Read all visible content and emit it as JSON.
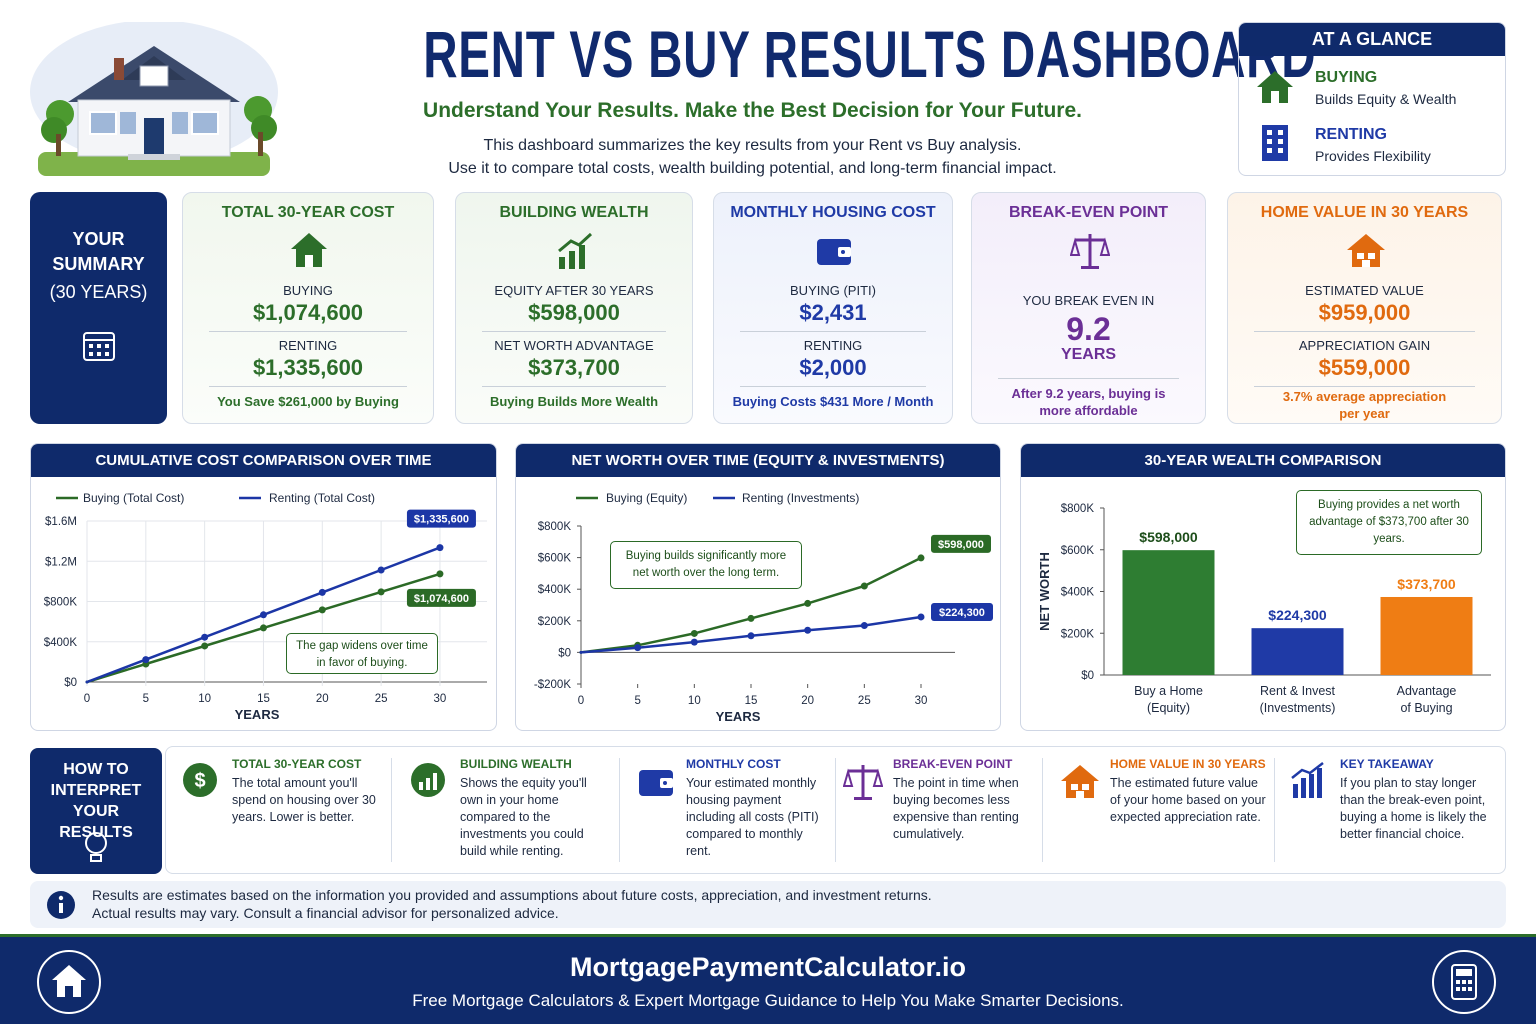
{
  "header": {
    "title": "RENT VS BUY RESULTS DASHBOARD",
    "subtitle": "Understand Your Results. Make the Best Decision for Your Future.",
    "description": [
      "This dashboard summarizes the key results from your Rent vs Buy analysis.",
      "Use it to compare total costs, wealth building potential, and long-term financial impact."
    ]
  },
  "glance": {
    "title": "AT A GLANCE",
    "items": [
      {
        "label": "BUYING",
        "text": "Builds Equity & Wealth"
      },
      {
        "label": "RENTING",
        "text": "Provides Flexibility"
      }
    ]
  },
  "summary": {
    "label": [
      "YOUR",
      "SUMMARY",
      "(30 YEARS)"
    ],
    "cards": [
      {
        "title": "TOTAL 30-YEAR COST",
        "rows": [
          {
            "label": "BUYING",
            "value": "$1,074,600"
          },
          {
            "label": "RENTING",
            "value": "$1,335,600"
          }
        ],
        "footer": "You Save $261,000 by Buying"
      },
      {
        "title": "BUILDING WEALTH",
        "rows": [
          {
            "label": "EQUITY AFTER 30 YEARS",
            "value": "$598,000"
          },
          {
            "label": "NET WORTH ADVANTAGE",
            "value": "$373,700"
          }
        ],
        "footer": "Buying Builds More Wealth"
      },
      {
        "title": "MONTHLY HOUSING COST",
        "rows": [
          {
            "label": "BUYING (PITI)",
            "value": "$2,431"
          },
          {
            "label": "RENTING",
            "value": "$2,000"
          }
        ],
        "footer": "Buying Costs $431 More / Month"
      },
      {
        "title": "BREAK-EVEN POINT",
        "rows": [
          {
            "label": "YOU BREAK EVEN IN",
            "value": "9.2",
            "unit": "YEARS"
          }
        ],
        "footer": "After 9.2 years, buying is more affordable"
      },
      {
        "title": "HOME VALUE IN 30 YEARS",
        "rows": [
          {
            "label": "ESTIMATED VALUE",
            "value": "$959,000"
          },
          {
            "label": "APPRECIATION GAIN",
            "value": "$559,000"
          }
        ],
        "footer": "3.7% average appreciation per year"
      }
    ]
  },
  "chart_data": [
    {
      "type": "line",
      "title": "CUMULATIVE COST COMPARISON OVER TIME",
      "x_label": "YEARS",
      "x": [
        0,
        5,
        10,
        15,
        20,
        25,
        30
      ],
      "xlim": [
        0,
        34
      ],
      "xticks": [
        0,
        5,
        10,
        15,
        20,
        25,
        30
      ],
      "ylim": [
        0,
        1600000
      ],
      "yticks": [
        {
          "value": 0,
          "label": "$0"
        },
        {
          "value": 400000,
          "label": "$400K"
        },
        {
          "value": 800000,
          "label": "$800K"
        },
        {
          "value": 1200000,
          "label": "$1.2M"
        },
        {
          "value": 1600000,
          "label": "$1.6M"
        }
      ],
      "grid": true,
      "series": [
        {
          "name": "Buying (Total Cost)",
          "color": "#2b6a26",
          "values": [
            0,
            179100,
            358200,
            537300,
            716400,
            895500,
            1074600
          ],
          "value_labels": [
            null,
            null,
            null,
            null,
            null,
            null,
            "$1,074,600"
          ]
        },
        {
          "name": "Renting (Total Cost)",
          "color": "#1c36a6",
          "values": [
            0,
            222600,
            445200,
            667800,
            890400,
            1113000,
            1335600
          ],
          "value_labels": [
            null,
            null,
            null,
            null,
            null,
            null,
            "$1,335,600"
          ]
        }
      ],
      "annotation": "The gap widens over time in favor of buying."
    },
    {
      "type": "line",
      "title": "NET WORTH OVER TIME (EQUITY & INVESTMENTS)",
      "x_label": "YEARS",
      "x": [
        0,
        5,
        10,
        15,
        20,
        25,
        30
      ],
      "xlim": [
        0,
        33
      ],
      "xticks": [
        0,
        5,
        10,
        15,
        20,
        25,
        30
      ],
      "ylim": [
        -200000,
        800000
      ],
      "yticks": [
        {
          "value": -200000,
          "label": "-$200K"
        },
        {
          "value": 0,
          "label": "$0"
        },
        {
          "value": 200000,
          "label": "$200K"
        },
        {
          "value": 400000,
          "label": "$400K"
        },
        {
          "value": 600000,
          "label": "$600K"
        },
        {
          "value": 800000,
          "label": "$800K"
        }
      ],
      "grid": false,
      "series": [
        {
          "name": "Buying (Equity)",
          "color": "#2b6a26",
          "values": [
            0,
            45000,
            120000,
            215000,
            310000,
            420000,
            598000
          ],
          "value_labels": [
            null,
            null,
            null,
            null,
            null,
            null,
            "$598,000"
          ]
        },
        {
          "name": "Renting (Investments)",
          "color": "#1c36a6",
          "values": [
            0,
            30000,
            65000,
            105000,
            140000,
            170000,
            224300
          ],
          "value_labels": [
            null,
            null,
            null,
            null,
            null,
            null,
            "$224,300"
          ]
        }
      ],
      "annotation": "Buying builds significantly more net worth over the long term."
    },
    {
      "type": "bar",
      "title": "30-YEAR WEALTH COMPARISON",
      "y_label": "NET WORTH",
      "categories": [
        [
          "Buy a Home",
          "(Equity)"
        ],
        [
          "Rent & Invest",
          "(Investments)"
        ],
        [
          "Advantage",
          "of Buying"
        ]
      ],
      "values": [
        598000,
        224300,
        373700
      ],
      "value_labels": [
        "$598,000",
        "$224,300",
        "$373,700"
      ],
      "colors": [
        "#2e7d32",
        "#1f3aa6",
        "#ef7d14"
      ],
      "ylim": [
        0,
        800000
      ],
      "yticks": [
        {
          "value": 0,
          "label": "$0"
        },
        {
          "value": 200000,
          "label": "$200K"
        },
        {
          "value": 400000,
          "label": "$400K"
        },
        {
          "value": 600000,
          "label": "$600K"
        },
        {
          "value": 800000,
          "label": "$800K"
        }
      ],
      "grid": false,
      "annotation": "Buying provides a net worth advantage of $373,700 after 30 years."
    }
  ],
  "guide": {
    "title": "HOW TO INTERPRET YOUR RESULTS",
    "items": [
      {
        "title": "TOTAL 30-YEAR COST",
        "text": "The total amount you'll spend on housing over 30 years. Lower is better."
      },
      {
        "title": "BUILDING WEALTH",
        "text": "Shows the equity you'll own in your home compared to the investments you could build while renting."
      },
      {
        "title": "MONTHLY COST",
        "text": "Your estimated monthly housing payment including all costs (PITI) compared to monthly rent."
      },
      {
        "title": "BREAK-EVEN POINT",
        "text": "The point in time when buying becomes less expensive than renting cumulatively."
      },
      {
        "title": "HOME VALUE IN 30 YEARS",
        "text": "The estimated future value of your home based on your expected appreciation rate."
      },
      {
        "title": "KEY TAKEAWAY",
        "text": "If you plan to stay longer than the break-even point, buying a home is likely the better financial choice."
      }
    ]
  },
  "note": [
    "Results are estimates based on the information you provided and assumptions about future costs, appreciation, and investment returns.",
    "Actual results may vary. Consult a financial advisor for personalized advice."
  ],
  "footer": {
    "site": "MortgagePaymentCalculator.io",
    "tagline": "Free Mortgage Calculators & Expert Mortgage Guidance to Help You Make Smarter Decisions."
  }
}
